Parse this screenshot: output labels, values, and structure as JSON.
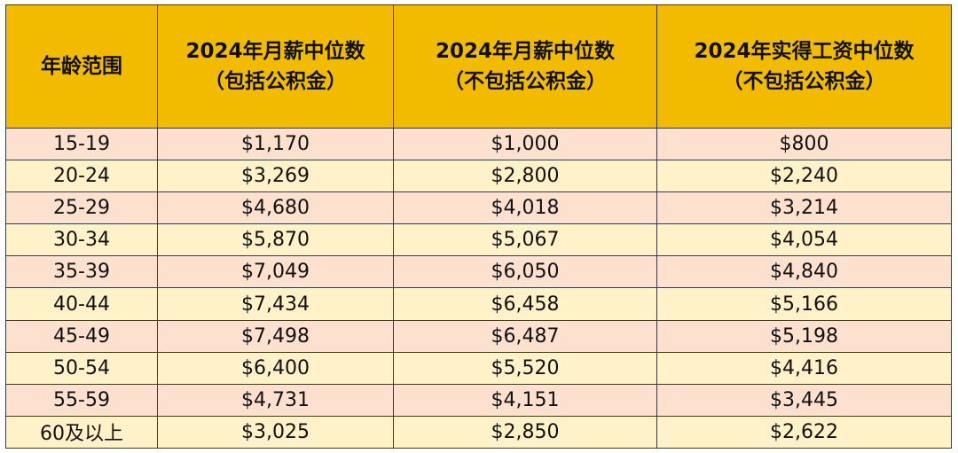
{
  "table": {
    "header": {
      "age": [
        "年龄范围"
      ],
      "median_incl_cpf": [
        "2024年月薪中位数",
        "（包括公积金）"
      ],
      "median_excl_cpf": [
        "2024年月薪中位数",
        "（不包括公积金）"
      ],
      "takehome_median": [
        "2024年实得工资中位数",
        "（不包括公积金）"
      ]
    },
    "rows": [
      {
        "age": "15-19",
        "incl": "$1,170",
        "excl": "$1,000",
        "takehome": "$800"
      },
      {
        "age": "20-24",
        "incl": "$3,269",
        "excl": "$2,800",
        "takehome": "$2,240"
      },
      {
        "age": "25-29",
        "incl": "$4,680",
        "excl": "$4,018",
        "takehome": "$3,214"
      },
      {
        "age": "30-34",
        "incl": "$5,870",
        "excl": "$5,067",
        "takehome": "$4,054"
      },
      {
        "age": "35-39",
        "incl": "$7,049",
        "excl": "$6,050",
        "takehome": "$4,840"
      },
      {
        "age": "40-44",
        "incl": "$7,434",
        "excl": "$6,458",
        "takehome": "$5,166"
      },
      {
        "age": "45-49",
        "incl": "$7,498",
        "excl": "$6,487",
        "takehome": "$5,198"
      },
      {
        "age": "50-54",
        "incl": "$6,400",
        "excl": "$5,520",
        "takehome": "$4,416"
      },
      {
        "age": "55-59",
        "incl": "$4,731",
        "excl": "$4,151",
        "takehome": "$3,445"
      },
      {
        "age": "60及以上",
        "incl": "$3,025",
        "excl": "$2,850",
        "takehome": "$2,622"
      }
    ]
  },
  "colors": {
    "header_bg": "#f2bb00",
    "row_odd_bg": "#fde0cd",
    "row_even_bg": "#fff2c9",
    "border": "#3a3a3a"
  }
}
